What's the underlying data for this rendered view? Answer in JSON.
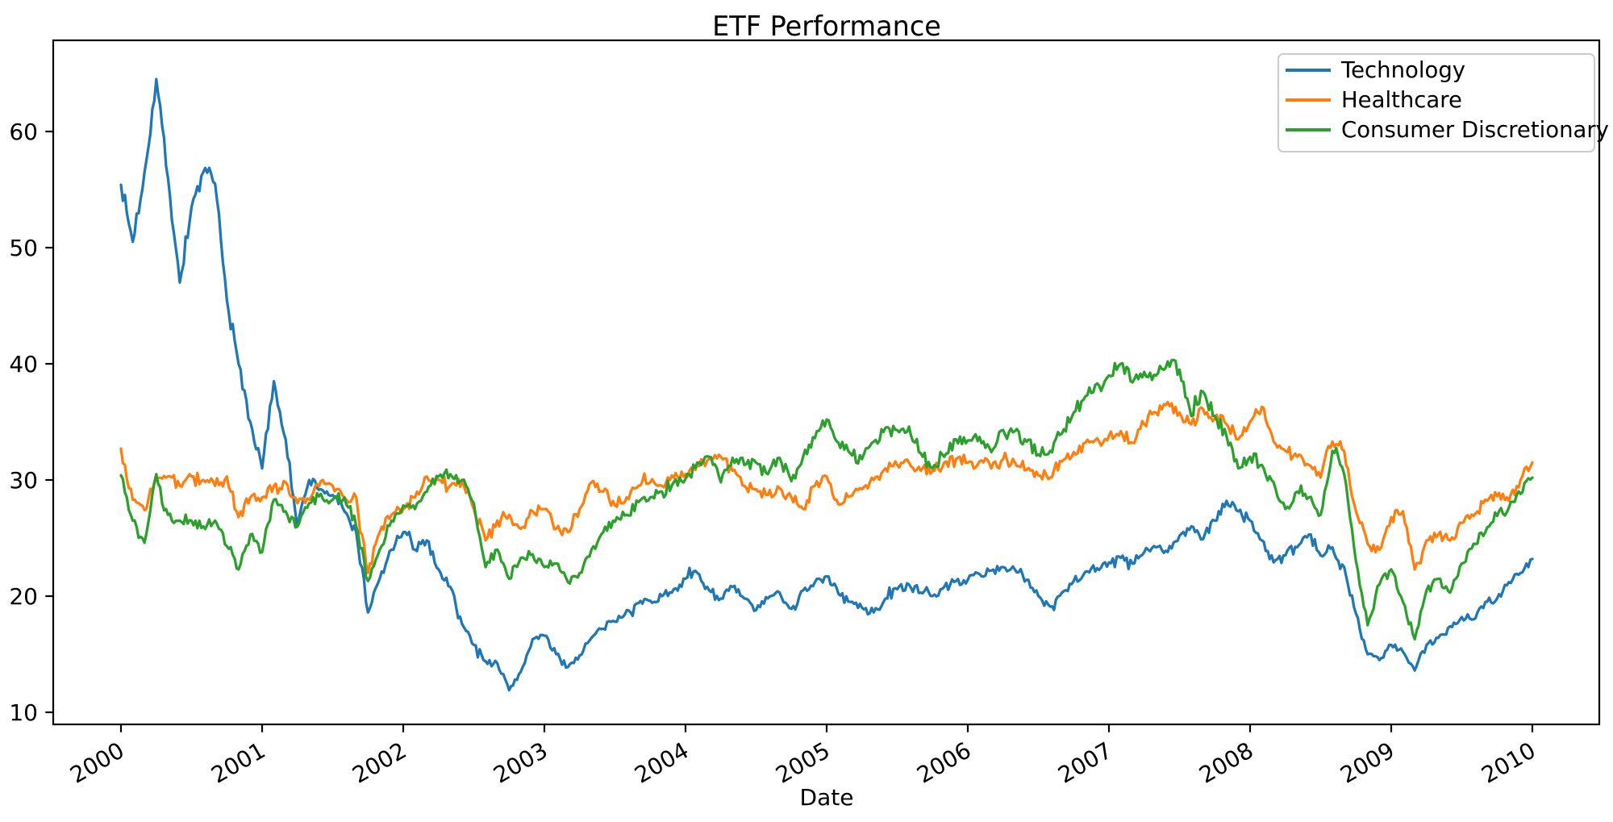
{
  "figure": {
    "title": "ETF Performance",
    "xlabel": "Date"
  },
  "chart_data": {
    "type": "line",
    "title": "ETF Performance",
    "xlabel": "Date",
    "ylabel": "",
    "grid": false,
    "background": "#ffffff",
    "x_tick_labels": [
      "2000",
      "2001",
      "2002",
      "2003",
      "2004",
      "2005",
      "2006",
      "2007",
      "2008",
      "2009",
      "2010"
    ],
    "x_tick_years": [
      2000,
      2001,
      2002,
      2003,
      2004,
      2005,
      2006,
      2007,
      2008,
      2009,
      2010
    ],
    "x_tick_rotation_deg": 30,
    "y_ticks": [
      10,
      20,
      30,
      40,
      50,
      60
    ],
    "xlim": [
      1999.52,
      2010.48
    ],
    "ylim": [
      9.0,
      67.9
    ],
    "legend": {
      "position": "upper right",
      "border_color": "#cccccc",
      "bg": "rgba(255,255,255,0.8)"
    },
    "sampling": "monthly estimates read from plot, decimal years 2000.0 to 2010.0",
    "x_start_year": 2000.0,
    "x_months_step": 1,
    "series": [
      {
        "name": "Technology",
        "color": "#1f77b4",
        "values": [
          55.4,
          50.5,
          56.5,
          64.5,
          56.0,
          47.0,
          53.5,
          56.5,
          55.5,
          45.5,
          40.0,
          35.0,
          31.0,
          38.5,
          33.5,
          26.0,
          30.0,
          29.2,
          28.7,
          27.3,
          25.5,
          18.6,
          21.5,
          24.0,
          25.5,
          24.0,
          24.8,
          22.3,
          20.8,
          17.6,
          15.8,
          14.4,
          14.2,
          11.9,
          13.5,
          16.3,
          16.6,
          15.0,
          13.9,
          14.9,
          16.4,
          17.2,
          17.8,
          18.8,
          19.4,
          19.6,
          20.0,
          20.6,
          21.5,
          22.0,
          20.5,
          19.8,
          20.8,
          19.8,
          18.8,
          19.8,
          20.3,
          18.9,
          20.5,
          21.2,
          21.7,
          20.2,
          19.5,
          19.0,
          18.6,
          19.8,
          20.6,
          21.0,
          20.3,
          20.0,
          20.8,
          21.3,
          21.4,
          21.9,
          22.2,
          22.5,
          22.3,
          21.4,
          20.0,
          19.1,
          20.3,
          21.3,
          22.1,
          22.4,
          22.9,
          23.3,
          22.8,
          23.8,
          24.2,
          23.8,
          25.2,
          26.0,
          24.9,
          26.5,
          28.2,
          27.3,
          26.5,
          24.8,
          22.9,
          23.5,
          24.2,
          25.3,
          23.5,
          24.2,
          22.5,
          18.5,
          15.0,
          14.5,
          15.8,
          15.2,
          13.6,
          15.8,
          16.4,
          17.4,
          18.2,
          18.0,
          19.5,
          19.8,
          21.2,
          22.0,
          23.2
        ]
      },
      {
        "name": "Healthcare",
        "color": "#ff7f0e",
        "values": [
          32.7,
          28.3,
          27.4,
          30.0,
          30.3,
          29.5,
          30.3,
          30.0,
          29.5,
          30.3,
          26.8,
          28.5,
          28.5,
          29.5,
          29.8,
          28.0,
          28.3,
          29.9,
          29.5,
          28.5,
          28.5,
          22.0,
          25.5,
          27.0,
          27.5,
          28.5,
          30.3,
          30.0,
          29.5,
          29.8,
          27.5,
          24.8,
          26.5,
          27.0,
          25.8,
          27.3,
          27.5,
          25.8,
          25.5,
          27.5,
          29.8,
          29.0,
          27.8,
          28.5,
          29.5,
          29.8,
          29.5,
          30.2,
          30.5,
          31.3,
          31.8,
          32.0,
          30.8,
          29.5,
          29.2,
          28.7,
          29.3,
          28.5,
          27.5,
          29.5,
          30.3,
          27.9,
          28.6,
          29.2,
          30.0,
          31.0,
          31.3,
          31.5,
          30.8,
          30.8,
          31.5,
          31.8,
          31.5,
          31.6,
          31.0,
          31.8,
          31.5,
          30.9,
          30.4,
          30.2,
          31.6,
          32.4,
          33.2,
          33.6,
          33.8,
          34.2,
          33.2,
          34.8,
          35.8,
          36.7,
          35.8,
          34.8,
          36.1,
          35.3,
          34.8,
          33.5,
          35.0,
          36.3,
          33.3,
          32.5,
          32.0,
          31.3,
          30.2,
          33.3,
          32.5,
          27.3,
          24.5,
          24.0,
          26.8,
          27.3,
          22.3,
          24.8,
          25.3,
          24.8,
          26.3,
          26.9,
          28.3,
          28.6,
          28.2,
          30.0,
          31.5
        ]
      },
      {
        "name": "Consumer Discretionary",
        "color": "#2ca02c",
        "values": [
          30.4,
          26.5,
          24.6,
          30.5,
          27.0,
          26.5,
          26.5,
          26.0,
          26.5,
          24.3,
          22.3,
          25.3,
          23.8,
          28.3,
          27.3,
          26.0,
          28.0,
          28.8,
          28.3,
          28.5,
          26.0,
          21.3,
          24.0,
          26.5,
          27.8,
          27.5,
          29.0,
          30.3,
          30.5,
          30.0,
          28.0,
          22.5,
          24.0,
          21.5,
          23.3,
          23.6,
          22.5,
          22.8,
          21.2,
          22.0,
          24.0,
          25.5,
          26.4,
          27.0,
          28.1,
          28.5,
          29.0,
          29.8,
          30.1,
          31.5,
          32.0,
          29.8,
          31.9,
          31.3,
          31.5,
          30.5,
          31.9,
          29.9,
          32.0,
          33.6,
          35.2,
          33.2,
          32.3,
          31.8,
          33.3,
          34.5,
          34.3,
          34.6,
          32.3,
          31.0,
          32.0,
          33.5,
          33.4,
          33.7,
          32.4,
          34.3,
          34.2,
          33.3,
          32.2,
          32.5,
          34.0,
          35.8,
          37.2,
          38.3,
          39.0,
          40.0,
          38.4,
          39.3,
          39.0,
          40.2,
          39.5,
          35.5,
          37.6,
          35.5,
          33.8,
          31.0,
          32.0,
          31.3,
          29.8,
          27.5,
          29.0,
          28.5,
          27.0,
          32.5,
          30.5,
          23.0,
          17.5,
          21.0,
          22.3,
          19.5,
          16.3,
          20.5,
          21.5,
          20.3,
          22.8,
          24.5,
          25.5,
          26.9,
          27.6,
          28.8,
          30.2
        ]
      }
    ]
  }
}
